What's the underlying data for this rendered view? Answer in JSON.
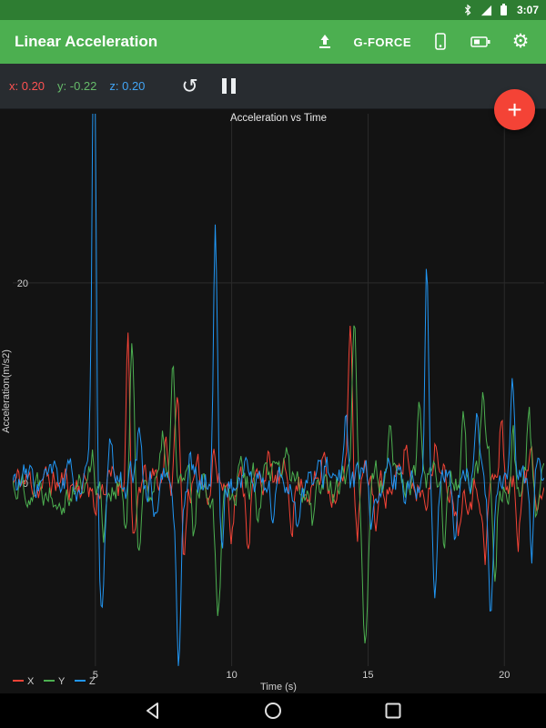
{
  "status_bar": {
    "time": "3:07"
  },
  "app_bar": {
    "title": "Linear Acceleration",
    "gforce_label": "G-FORCE"
  },
  "sensor_bar": {
    "x_value": "x: 0.20",
    "y_value": "y: -0.22",
    "z_value": "z: 0.20"
  },
  "fab": {
    "label": "+"
  },
  "chart_data": {
    "type": "line",
    "title": "Acceleration vs Time",
    "xlabel": "Time (s)",
    "ylabel": "Acceleration(m/s2)",
    "xlim": [
      1.97,
      21.46
    ],
    "ylim": [
      -18.3,
      36.9
    ],
    "xticks": [
      5,
      10,
      15,
      20
    ],
    "yticks": [
      0,
      20
    ],
    "grid": true,
    "legend_position": "bottom-left",
    "noise": {
      "amplitude": 1.25,
      "smoothing": 0.72,
      "step": 0.045
    },
    "series": [
      {
        "name": "X",
        "color": "#f44336",
        "seed": 11,
        "spikes": [
          [
            5.0,
            -3
          ],
          [
            6.2,
            16
          ],
          [
            6.42,
            -7,
            0.1
          ],
          [
            7.6,
            5
          ],
          [
            8.0,
            9
          ],
          [
            8.25,
            -7
          ],
          [
            9.35,
            4
          ],
          [
            10.0,
            -4
          ],
          [
            10.6,
            -5
          ],
          [
            11.3,
            3
          ],
          [
            12.2,
            -3
          ],
          [
            13.4,
            3
          ],
          [
            14.35,
            17
          ],
          [
            14.6,
            -6
          ],
          [
            15.3,
            -4
          ],
          [
            16.4,
            4
          ],
          [
            17.5,
            5
          ],
          [
            18.3,
            -4
          ],
          [
            19.3,
            -8
          ],
          [
            19.9,
            6
          ],
          [
            20.5,
            -5
          ],
          [
            21.0,
            4
          ]
        ]
      },
      {
        "name": "Y",
        "color": "#4caf50",
        "seed": 22,
        "spikes": [
          [
            4.9,
            3
          ],
          [
            5.3,
            -4
          ],
          [
            6.1,
            -5
          ],
          [
            6.35,
            13
          ],
          [
            6.6,
            -6
          ],
          [
            7.5,
            4
          ],
          [
            7.85,
            11
          ],
          [
            8.6,
            -6
          ],
          [
            9.5,
            -12,
            0.09
          ],
          [
            10.3,
            4
          ],
          [
            11.0,
            -3
          ],
          [
            12.0,
            3
          ],
          [
            13.0,
            -3
          ],
          [
            14.5,
            17,
            0.08
          ],
          [
            14.9,
            -15.5,
            0.09
          ],
          [
            15.8,
            4
          ],
          [
            16.9,
            8
          ],
          [
            17.8,
            -5
          ],
          [
            18.5,
            9
          ],
          [
            19.2,
            8
          ],
          [
            19.65,
            -10
          ],
          [
            20.3,
            6
          ],
          [
            20.9,
            7
          ],
          [
            21.2,
            -4
          ]
        ]
      },
      {
        "name": "Z",
        "color": "#2196f3",
        "seed": 33,
        "spikes": [
          [
            4.95,
            45,
            0.07
          ],
          [
            5.25,
            -13,
            0.09
          ],
          [
            5.6,
            3
          ],
          [
            6.6,
            4
          ],
          [
            7.2,
            -3
          ],
          [
            8.05,
            -17,
            0.09
          ],
          [
            8.5,
            3
          ],
          [
            9.4,
            25,
            0.07
          ],
          [
            9.65,
            -6
          ],
          [
            10.5,
            3
          ],
          [
            11.5,
            -3
          ],
          [
            12.4,
            -4
          ],
          [
            13.5,
            3
          ],
          [
            14.2,
            5
          ],
          [
            15.1,
            -5
          ],
          [
            16.2,
            3
          ],
          [
            17.15,
            21.5,
            0.07
          ],
          [
            17.45,
            -12
          ],
          [
            18.2,
            -4
          ],
          [
            19.0,
            4
          ],
          [
            19.5,
            -14.5,
            0.09
          ],
          [
            20.3,
            8
          ],
          [
            21.0,
            -7
          ]
        ]
      }
    ]
  }
}
